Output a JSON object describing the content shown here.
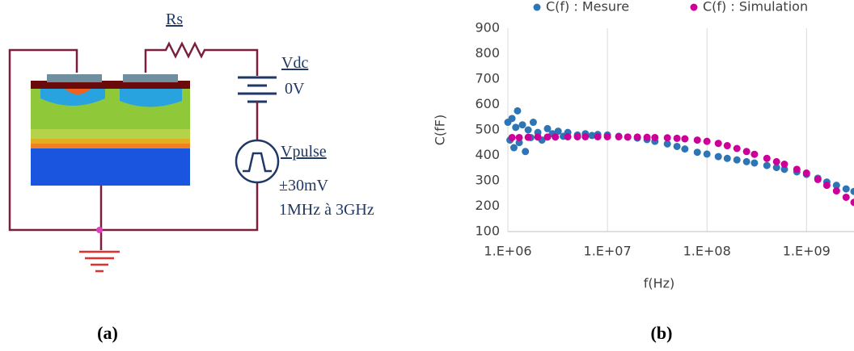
{
  "diagram": {
    "labels": {
      "rs": "Rs",
      "vdc": "Vdc",
      "vdc_value": "0V",
      "vpulse": "Vpulse",
      "amplitude": "±30mV",
      "range": "1MHz à 3GHz"
    }
  },
  "panels": [
    "(a)",
    "(b)"
  ],
  "chart_data": {
    "type": "scatter",
    "xlabel": "f(Hz)",
    "ylabel": "C(fF)",
    "xscale": "log",
    "xgrid": true,
    "legend": "top",
    "xlim": [
      1000000.0,
      3000000000.0
    ],
    "ylim": [
      100,
      900
    ],
    "xticks": [
      {
        "value": 1000000.0,
        "label": "1.E+06"
      },
      {
        "value": 10000000.0,
        "label": "1.E+07"
      },
      {
        "value": 100000000.0,
        "label": "1.E+08"
      },
      {
        "value": 1000000000.0,
        "label": "1.E+09"
      }
    ],
    "yticks": [
      100,
      200,
      300,
      400,
      500,
      600,
      700,
      800,
      900
    ],
    "series": [
      {
        "name": "C(f) : Mesure",
        "color": "#2e75b6",
        "x": [
          1000000.0,
          1050000.0,
          1100000.0,
          1150000.0,
          1200000.0,
          1250000.0,
          1300000.0,
          1400000.0,
          1500000.0,
          1600000.0,
          1700000.0,
          1800000.0,
          2000000.0,
          2200000.0,
          2500000.0,
          2800000.0,
          3200000.0,
          3600000.0,
          4000000.0,
          5000000.0,
          6000000.0,
          7000000.0,
          8000000.0,
          10000000.0,
          13000000.0,
          16000000.0,
          20000000.0,
          25000000.0,
          30000000.0,
          40000000.0,
          50000000.0,
          60000000.0,
          80000000.0,
          100000000.0,
          130000000.0,
          160000000.0,
          200000000.0,
          250000000.0,
          300000000.0,
          400000000.0,
          500000000.0,
          600000000.0,
          800000000.0,
          1000000000.0,
          1300000000.0,
          1600000000.0,
          2000000000.0,
          2500000000.0,
          3000000000.0
        ],
        "values": [
          530,
          460,
          545,
          430,
          510,
          575,
          450,
          520,
          415,
          500,
          470,
          530,
          490,
          460,
          505,
          485,
          495,
          475,
          490,
          480,
          485,
          478,
          482,
          480,
          475,
          472,
          468,
          462,
          455,
          445,
          435,
          425,
          412,
          405,
          395,
          388,
          382,
          375,
          370,
          360,
          352,
          345,
          335,
          325,
          310,
          295,
          282,
          268,
          258
        ]
      },
      {
        "name": "C(f) : Simulation",
        "color": "#cc0099",
        "x": [
          1100000.0,
          1300000.0,
          1600000.0,
          2000000.0,
          2500000.0,
          3000000.0,
          4000000.0,
          5000000.0,
          6000000.0,
          8000000.0,
          10000000.0,
          13000000.0,
          16000000.0,
          20000000.0,
          25000000.0,
          30000000.0,
          40000000.0,
          50000000.0,
          60000000.0,
          80000000.0,
          100000000.0,
          130000000.0,
          160000000.0,
          200000000.0,
          250000000.0,
          300000000.0,
          400000000.0,
          500000000.0,
          600000000.0,
          800000000.0,
          1000000000.0,
          1300000000.0,
          1600000000.0,
          2000000000.0,
          2500000000.0,
          3000000000.0
        ],
        "values": [
          470,
          470,
          471,
          472,
          472,
          472,
          473,
          473,
          473,
          473,
          473,
          473,
          472,
          472,
          471,
          470,
          469,
          467,
          465,
          460,
          455,
          447,
          438,
          427,
          415,
          404,
          388,
          375,
          365,
          345,
          330,
          305,
          282,
          260,
          235,
          215
        ]
      }
    ]
  }
}
